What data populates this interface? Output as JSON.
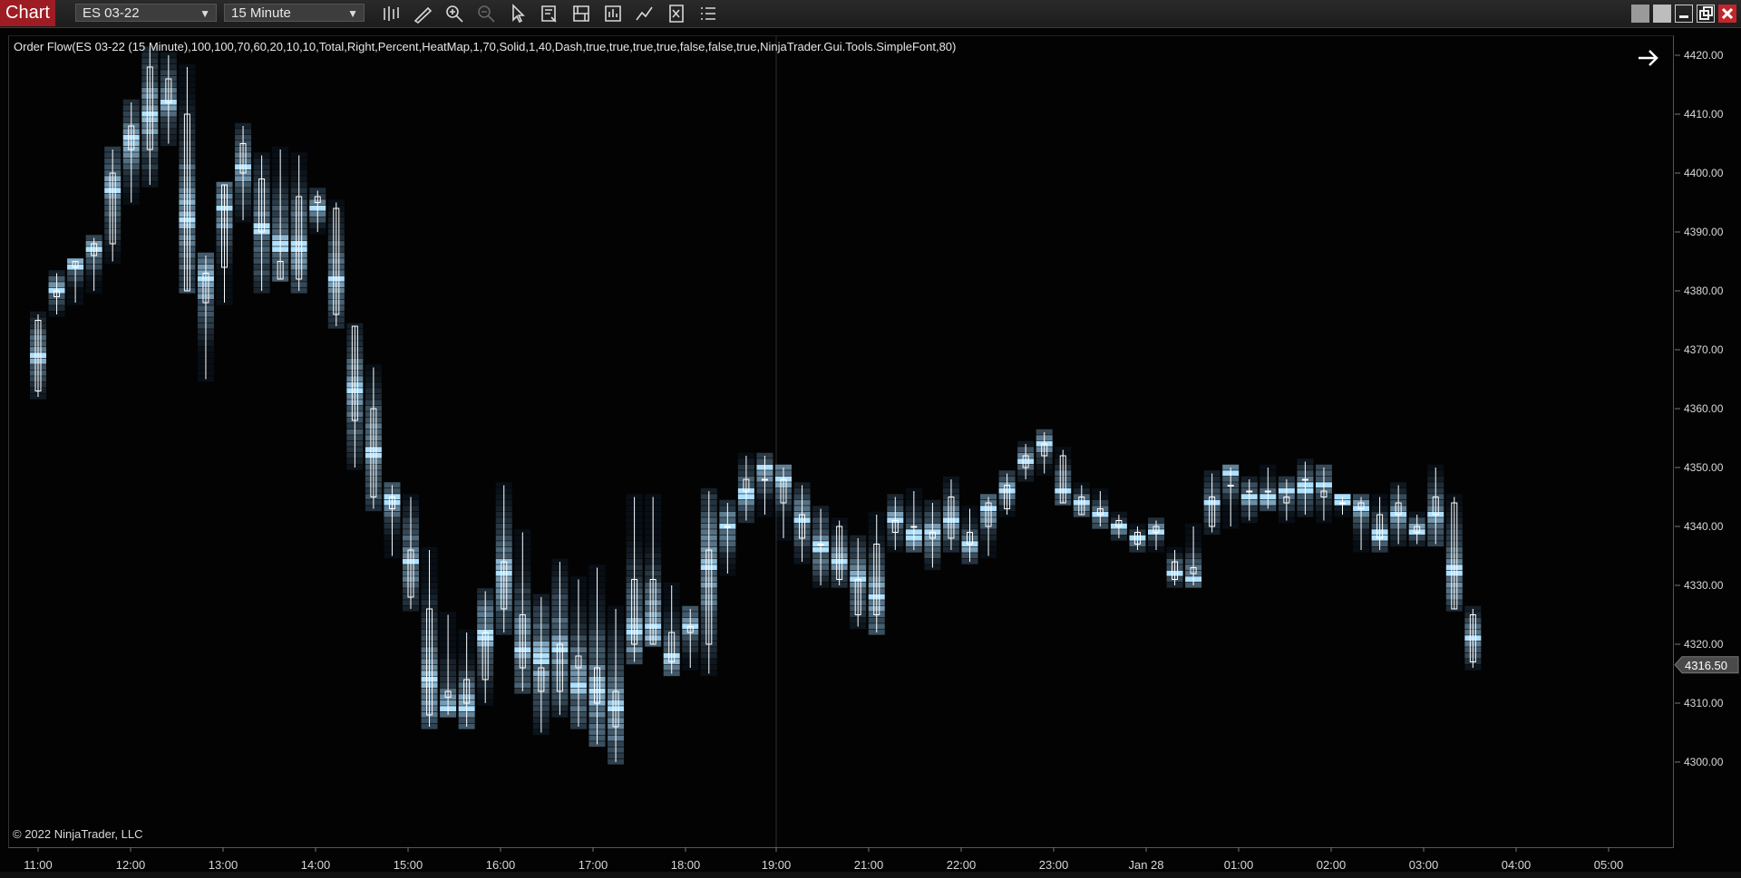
{
  "window": {
    "tab_label": "Chart",
    "instrument": "ES 03-22",
    "interval": "15 Minute"
  },
  "toolbar": {
    "tools": [
      "bar-type-icon",
      "drawing-tool-icon",
      "zoom-in-icon",
      "zoom-out-icon",
      "pointer-icon",
      "data-box-icon",
      "properties-icon",
      "strategies-icon",
      "indicators-icon",
      "templates-icon",
      "chart-trader-icon"
    ]
  },
  "chart": {
    "indicator_label": "Order Flow(ES 03-22 (15 Minute),100,100,70,60,20,10,10,Total,Right,Percent,HeatMap,1,70,Solid,1,40,Dash,true,true,true,true,false,false,true,NinjaTrader.Gui.Tools.SimpleFont,80)",
    "copyright": "© 2022 NinjaTrader, LLC",
    "last_price_label": "4316.50",
    "colors": {
      "background": "#030303",
      "heat_low": "#1a2d40",
      "heat_high": "#aee0ff",
      "candle_outline": "#ffffff",
      "price_marker": "#5a5a5a"
    }
  },
  "chart_data": {
    "type": "candlestick-volume-profile",
    "y_axis": {
      "ticks": [
        "4420.00",
        "4410.00",
        "4400.00",
        "4390.00",
        "4380.00",
        "4370.00",
        "4360.00",
        "4350.00",
        "4340.00",
        "4330.00",
        "4320.00",
        "4310.00",
        "4300.00"
      ],
      "range": [
        4294,
        4424
      ]
    },
    "x_axis": {
      "ticks": [
        "11:00",
        "12:00",
        "13:00",
        "14:00",
        "15:00",
        "16:00",
        "17:00",
        "18:00",
        "19:00",
        "21:00",
        "22:00",
        "23:00",
        "Jan 28",
        "01:00",
        "02:00",
        "03:00",
        "04:00",
        "05:00"
      ]
    },
    "session_break_after": "19:00",
    "last_price": 4316.5,
    "bars_ohlc": [
      [
        4375,
        4376,
        4362,
        4363
      ],
      [
        4379,
        4383,
        4376,
        4380
      ],
      [
        4384,
        4385,
        4378,
        4385
      ],
      [
        4386,
        4389,
        4380,
        4388
      ],
      [
        4388,
        4404,
        4385,
        4400
      ],
      [
        4408,
        4412,
        4395,
        4404
      ],
      [
        4404,
        4421,
        4398,
        4418
      ],
      [
        4416,
        4420,
        4405,
        4412
      ],
      [
        4410,
        4418,
        4380,
        4380
      ],
      [
        4383,
        4386,
        4365,
        4378
      ],
      [
        4384,
        4398,
        4378,
        4398
      ],
      [
        4400,
        4408,
        4392,
        4405
      ],
      [
        4399,
        4403,
        4380,
        4390
      ],
      [
        4385,
        4404,
        4382,
        4382
      ],
      [
        4382,
        4403,
        4380,
        4396
      ],
      [
        4395,
        4397,
        4390,
        4396
      ],
      [
        4394,
        4395,
        4374,
        4376
      ],
      [
        4374,
        4374,
        4350,
        4358
      ],
      [
        4360,
        4367,
        4343,
        4345
      ],
      [
        4345,
        4347,
        4335,
        4343
      ],
      [
        4336,
        4345,
        4326,
        4328
      ],
      [
        4326,
        4336,
        4306,
        4308
      ],
      [
        4312,
        4325,
        4308,
        4311
      ],
      [
        4314,
        4322,
        4306,
        4310
      ],
      [
        4322,
        4329,
        4310,
        4314
      ],
      [
        4326,
        4347,
        4322,
        4334
      ],
      [
        4325,
        4339,
        4312,
        4316
      ],
      [
        4316,
        4328,
        4305,
        4312
      ],
      [
        4312,
        4334,
        4308,
        4320
      ],
      [
        4318,
        4331,
        4306,
        4316
      ],
      [
        4316,
        4333,
        4303,
        4310
      ],
      [
        4312,
        4326,
        4300,
        4306
      ],
      [
        4320,
        4345,
        4317,
        4331
      ],
      [
        4320,
        4345,
        4320,
        4331
      ],
      [
        4317,
        4330,
        4315,
        4322
      ],
      [
        4323,
        4326,
        4316,
        4322
      ],
      [
        4336,
        4346,
        4315,
        4320
      ],
      [
        4340,
        4344,
        4332,
        4340
      ],
      [
        4346,
        4352,
        4341,
        4348
      ],
      [
        4348,
        4352,
        4342,
        4348
      ],
      [
        4344,
        4350,
        4338,
        4348
      ],
      [
        4342,
        4347,
        4334,
        4338
      ],
      [
        4337,
        4343,
        4330,
        4337
      ],
      [
        4340,
        4341,
        4330,
        4331
      ],
      [
        4331,
        4338,
        4323,
        4325
      ],
      [
        4325,
        4342,
        4322,
        4337
      ],
      [
        4339,
        4345,
        4336,
        4341
      ],
      [
        4340,
        4346,
        4336,
        4340
      ],
      [
        4339,
        4344,
        4333,
        4338
      ],
      [
        4345,
        4348,
        4336,
        4338
      ],
      [
        4339,
        4343,
        4334,
        4337
      ],
      [
        4344,
        4345,
        4335,
        4340
      ],
      [
        4343,
        4349,
        4342,
        4347
      ],
      [
        4350,
        4354,
        4348,
        4352
      ],
      [
        4352,
        4356,
        4349,
        4354
      ],
      [
        4352,
        4353,
        4344,
        4344
      ],
      [
        4345,
        4347,
        4342,
        4342
      ],
      [
        4342,
        4346,
        4340,
        4343
      ],
      [
        4341,
        4342,
        4338,
        4340
      ],
      [
        4337,
        4340,
        4336,
        4339
      ],
      [
        4339,
        4341,
        4336,
        4340
      ],
      [
        4334,
        4336,
        4330,
        4331
      ],
      [
        4332,
        4340,
        4330,
        4333
      ],
      [
        4340,
        4349,
        4339,
        4345
      ],
      [
        4347,
        4350,
        4340,
        4347
      ],
      [
        4346,
        4348,
        4341,
        4346
      ],
      [
        4346,
        4350,
        4343,
        4346
      ],
      [
        4344,
        4348,
        4341,
        4345
      ],
      [
        4348,
        4351,
        4342,
        4348
      ],
      [
        4345,
        4350,
        4341,
        4346
      ],
      [
        4344,
        4345,
        4342,
        4344
      ],
      [
        4343,
        4345,
        4336,
        4344
      ],
      [
        4342,
        4345,
        4336,
        4338
      ],
      [
        4342,
        4347,
        4337,
        4344
      ],
      [
        4339,
        4342,
        4337,
        4340
      ],
      [
        4345,
        4350,
        4337,
        4342
      ],
      [
        4344,
        4345,
        4326,
        4326
      ],
      [
        4325,
        4326,
        4316,
        4317
      ]
    ]
  }
}
